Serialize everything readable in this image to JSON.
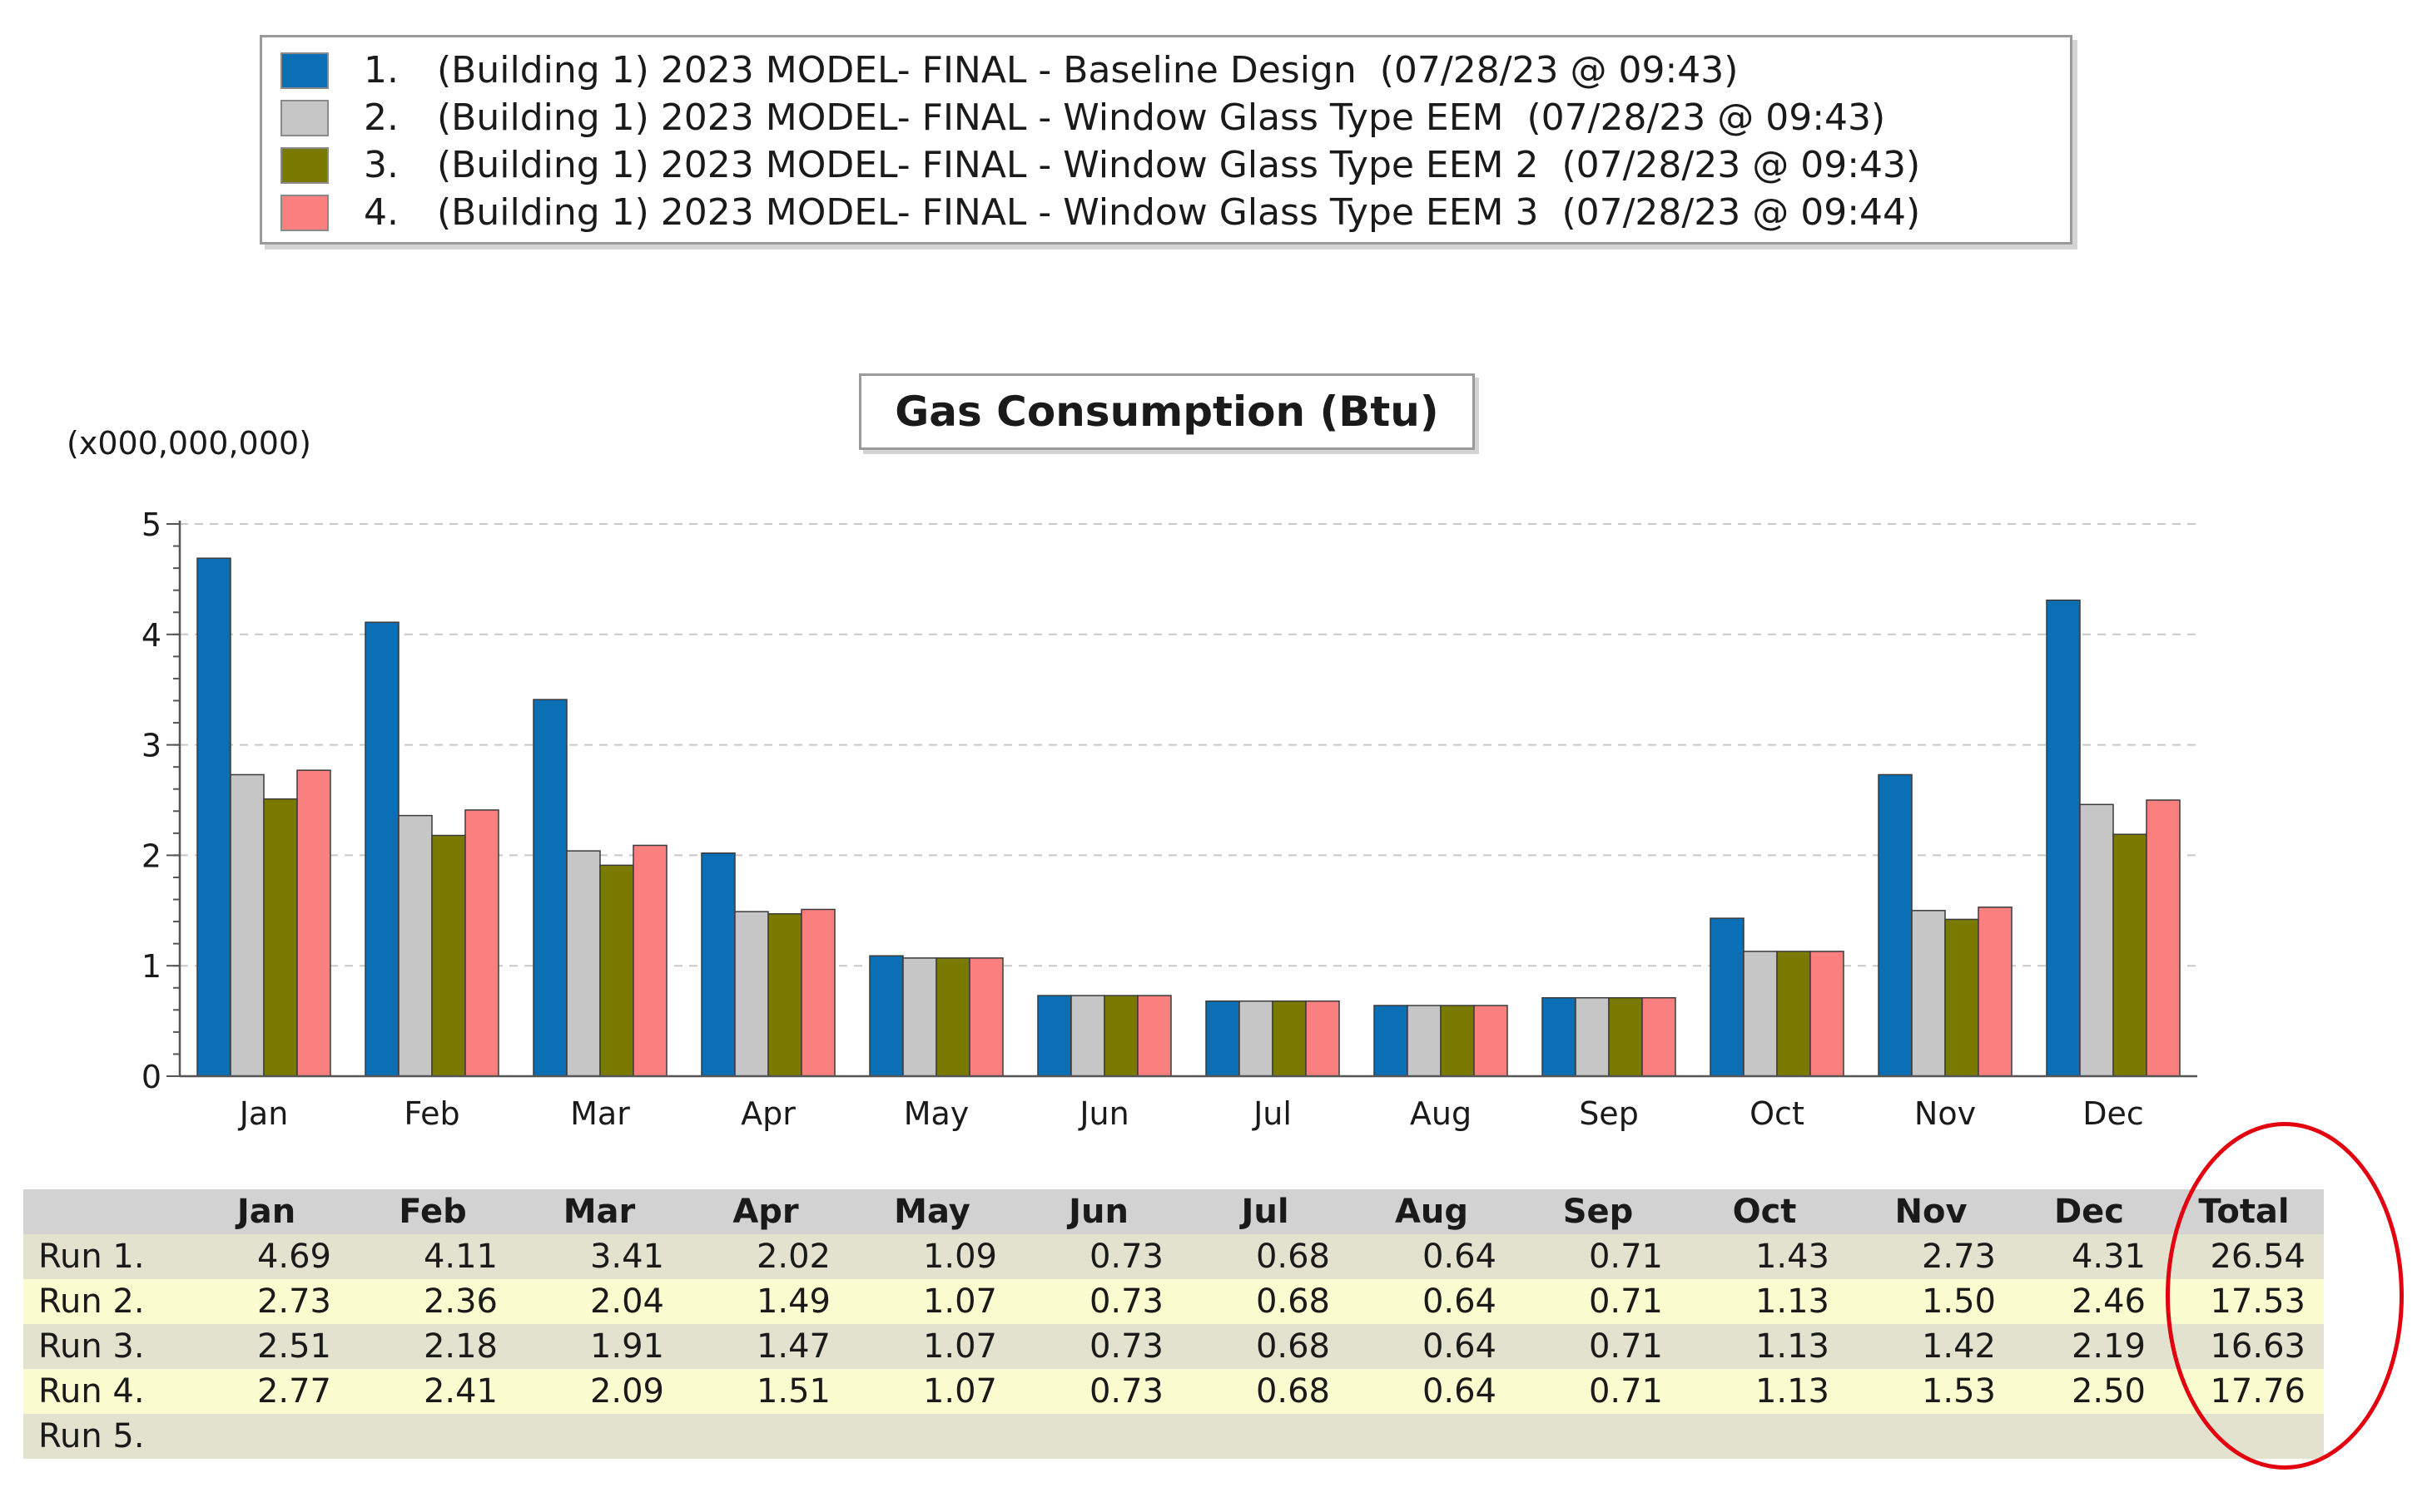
{
  "legend": {
    "items": [
      {
        "num": "1.",
        "label": "(Building 1) 2023 MODEL- FINAL - Baseline Design  (07/28/23 @ 09:43)",
        "color": "#0a6fb4"
      },
      {
        "num": "2.",
        "label": "(Building 1) 2023 MODEL- FINAL - Window Glass Type EEM  (07/28/23 @ 09:43)",
        "color": "#c6c6c6"
      },
      {
        "num": "3.",
        "label": "(Building 1) 2023 MODEL- FINAL - Window Glass Type EEM 2  (07/28/23 @ 09:43)",
        "color": "#7a7a00"
      },
      {
        "num": "4.",
        "label": "(Building 1) 2023 MODEL- FINAL - Window Glass Type EEM 3  (07/28/23 @ 09:44)",
        "color": "#fa8080"
      }
    ]
  },
  "chart_data": {
    "type": "bar",
    "title": "Gas Consumption (Btu)",
    "unit_label": "(x000,000,000)",
    "xlabel": "",
    "ylabel": "",
    "ylim": [
      0,
      5
    ],
    "yticks": [
      0,
      1,
      2,
      3,
      4,
      5
    ],
    "grid": true,
    "categories": [
      "Jan",
      "Feb",
      "Mar",
      "Apr",
      "May",
      "Jun",
      "Jul",
      "Aug",
      "Sep",
      "Oct",
      "Nov",
      "Dec"
    ],
    "series": [
      {
        "name": "Run 1.",
        "color": "#0a6fb4",
        "values": [
          4.69,
          4.11,
          3.41,
          2.02,
          1.09,
          0.73,
          0.68,
          0.64,
          0.71,
          1.43,
          2.73,
          4.31
        ]
      },
      {
        "name": "Run 2.",
        "color": "#c6c6c6",
        "values": [
          2.73,
          2.36,
          2.04,
          1.49,
          1.07,
          0.73,
          0.68,
          0.64,
          0.71,
          1.13,
          1.5,
          2.46
        ]
      },
      {
        "name": "Run 3.",
        "color": "#7a7a00",
        "values": [
          2.51,
          2.18,
          1.91,
          1.47,
          1.07,
          0.73,
          0.68,
          0.64,
          0.71,
          1.13,
          1.42,
          2.19
        ]
      },
      {
        "name": "Run 4.",
        "color": "#fa8080",
        "values": [
          2.77,
          2.41,
          2.09,
          1.51,
          1.07,
          0.73,
          0.68,
          0.64,
          0.71,
          1.13,
          1.53,
          2.5
        ]
      }
    ]
  },
  "table": {
    "headers": [
      "",
      "Jan",
      "Feb",
      "Mar",
      "Apr",
      "May",
      "Jun",
      "Jul",
      "Aug",
      "Sep",
      "Oct",
      "Nov",
      "Dec",
      "Total"
    ],
    "rows": [
      {
        "label": "Run 1.",
        "cells": [
          "4.69",
          "4.11",
          "3.41",
          "2.02",
          "1.09",
          "0.73",
          "0.68",
          "0.64",
          "0.71",
          "1.43",
          "2.73",
          "4.31",
          "26.54"
        ]
      },
      {
        "label": "Run 2.",
        "cells": [
          "2.73",
          "2.36",
          "2.04",
          "1.49",
          "1.07",
          "0.73",
          "0.68",
          "0.64",
          "0.71",
          "1.13",
          "1.50",
          "2.46",
          "17.53"
        ]
      },
      {
        "label": "Run 3.",
        "cells": [
          "2.51",
          "2.18",
          "1.91",
          "1.47",
          "1.07",
          "0.73",
          "0.68",
          "0.64",
          "0.71",
          "1.13",
          "1.42",
          "2.19",
          "16.63"
        ]
      },
      {
        "label": "Run 4.",
        "cells": [
          "2.77",
          "2.41",
          "2.09",
          "1.51",
          "1.07",
          "0.73",
          "0.68",
          "0.64",
          "0.71",
          "1.13",
          "1.53",
          "2.50",
          "17.76"
        ]
      },
      {
        "label": "Run 5.",
        "cells": [
          "",
          "",
          "",
          "",
          "",
          "",
          "",
          "",
          "",
          "",
          "",
          "",
          ""
        ]
      }
    ]
  },
  "annotation": {
    "color": "#e3000f",
    "target": "Total"
  }
}
